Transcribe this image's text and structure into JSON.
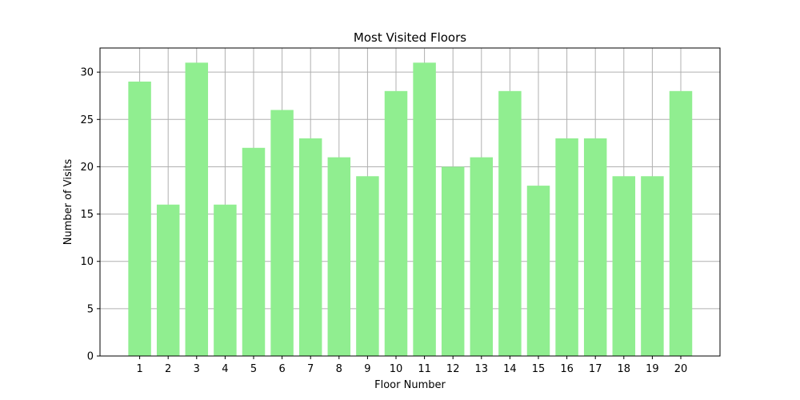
{
  "chart_data": {
    "type": "bar",
    "title": "Most Visited Floors",
    "xlabel": "Floor Number",
    "ylabel": "Number of Visits",
    "categories": [
      "1",
      "2",
      "3",
      "4",
      "5",
      "6",
      "7",
      "8",
      "9",
      "10",
      "11",
      "12",
      "13",
      "14",
      "15",
      "16",
      "17",
      "18",
      "19",
      "20"
    ],
    "series": [
      {
        "name": "Visits",
        "values": [
          29,
          16,
          31,
          16,
          22,
          26,
          23,
          21,
          19,
          28,
          31,
          20,
          21,
          28,
          18,
          23,
          23,
          19,
          19,
          28
        ]
      }
    ],
    "ylim": [
      0,
      32.55
    ],
    "yticks": [
      0,
      5,
      10,
      15,
      20,
      25,
      30
    ],
    "ytick_labels": [
      "0",
      "5",
      "10",
      "15",
      "20",
      "25",
      "30"
    ],
    "grid": true,
    "colors": {
      "bar": "#90ee90",
      "grid": "#b0b0b0",
      "axes": "#000000",
      "background": "#ffffff"
    }
  }
}
